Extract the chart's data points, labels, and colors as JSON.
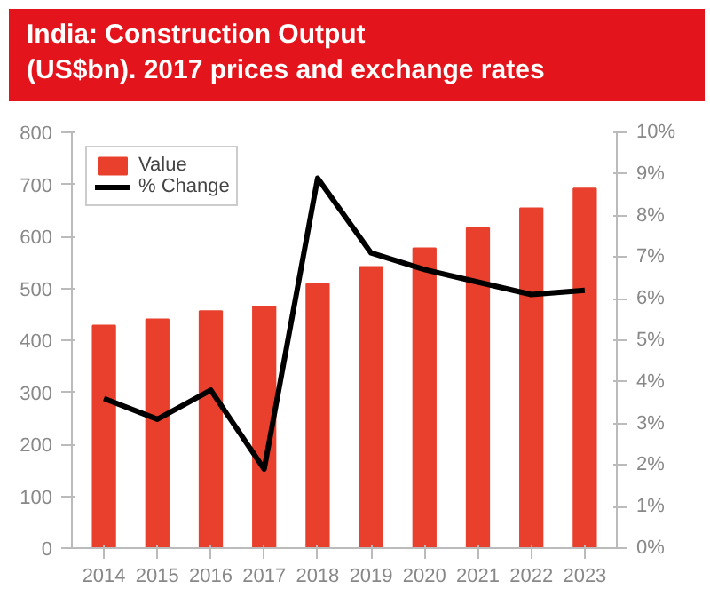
{
  "chart_data": {
    "type": "bar",
    "title": "India: Construction Output\n(US$bn). 2017 prices and exchange rates",
    "categories": [
      "2014",
      "2015",
      "2016",
      "2017",
      "2018",
      "2019",
      "2020",
      "2021",
      "2022",
      "2023"
    ],
    "series": [
      {
        "name": "Value",
        "color": "#e8402d",
        "values": [
          428,
          440,
          456,
          465,
          508,
          541,
          577,
          616,
          654,
          692
        ]
      },
      {
        "name": "% Change",
        "type": "line",
        "axis": "y2",
        "color": "#000000",
        "values": [
          3.6,
          3.1,
          3.8,
          1.9,
          8.9,
          7.1,
          6.7,
          6.4,
          6.1,
          6.2
        ]
      }
    ],
    "ylim": [
      0,
      800
    ],
    "yticks": [
      0,
      100,
      200,
      300,
      400,
      500,
      600,
      700,
      800
    ],
    "y2lim": [
      0,
      10
    ],
    "y2ticks": [
      {
        "value": 0,
        "label": "0%"
      },
      {
        "value": 1,
        "label": "1%"
      },
      {
        "value": 2,
        "label": "2%"
      },
      {
        "value": 3,
        "label": "3%"
      },
      {
        "value": 4,
        "label": "4%"
      },
      {
        "value": 5,
        "label": "5%"
      },
      {
        "value": 6,
        "label": "6%"
      },
      {
        "value": 7,
        "label": "7%"
      },
      {
        "value": 8,
        "label": "8%"
      },
      {
        "value": 9,
        "label": "9%"
      },
      {
        "value": 10,
        "label": "10%"
      }
    ],
    "grid": false,
    "legend": "top left",
    "marker": "none",
    "line_style": "solid"
  }
}
